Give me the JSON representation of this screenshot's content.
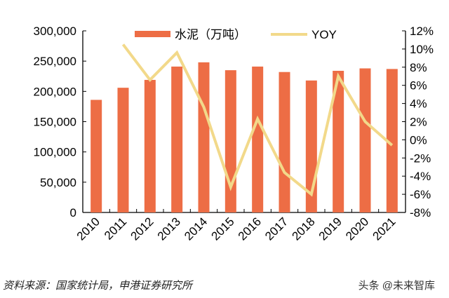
{
  "chart_data": {
    "type": "bar+line",
    "categories": [
      "2010",
      "2011",
      "2012",
      "2013",
      "2014",
      "2015",
      "2016",
      "2017",
      "2018",
      "2019",
      "2020",
      "2021"
    ],
    "series": [
      {
        "name": "水泥（万吨）",
        "type": "bar",
        "axis": "left",
        "color": "#ED6D45",
        "values": [
          186000,
          206000,
          219000,
          241000,
          248000,
          235000,
          241000,
          232000,
          218000,
          234000,
          238000,
          237000
        ]
      },
      {
        "name": "YOY",
        "type": "line",
        "axis": "right",
        "color": "#F2D98A",
        "values": [
          null,
          10.5,
          6.6,
          9.6,
          3.6,
          -5.2,
          2.3,
          -3.6,
          -6.0,
          7.0,
          2.0,
          -0.6
        ]
      }
    ],
    "left_axis": {
      "ylim": [
        0,
        300000
      ],
      "ticks": [
        "0",
        "50,000",
        "100,000",
        "150,000",
        "200,000",
        "250,000",
        "300,000"
      ]
    },
    "right_axis": {
      "ylim": [
        -8,
        12
      ],
      "ticks": [
        "-8%",
        "-6%",
        "-4%",
        "-2%",
        "0%",
        "2%",
        "4%",
        "6%",
        "8%",
        "10%",
        "12%"
      ]
    },
    "legend": "top-center",
    "grid": false
  },
  "footer": {
    "source": "资料来源：国家统计局，申港证券研究所",
    "watermark": "头条 @未来智库"
  }
}
